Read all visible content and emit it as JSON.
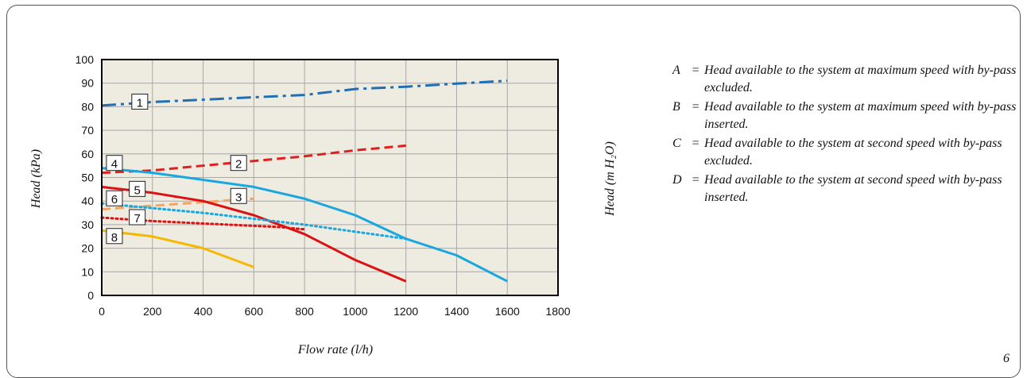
{
  "page_number": "6",
  "legend_notes": [
    {
      "key": "A",
      "eq": "=",
      "text": "Head available to the system at maximum speed with by-pass excluded."
    },
    {
      "key": "B",
      "eq": "=",
      "text": "Head available to the system at maximum speed with by-pass inserted."
    },
    {
      "key": "C",
      "eq": "=",
      "text": "Head available to the system at second speed with by-pass excluded."
    },
    {
      "key": "D",
      "eq": "=",
      "text": "Head available to the system at second speed with by-pass inserted."
    }
  ],
  "chart_data": {
    "type": "line",
    "title": "",
    "xlabel": "Flow rate (l/h)",
    "ylabel": "Head (kPa)",
    "y2label": "Head (m H₂O)",
    "xlim": [
      0,
      1800
    ],
    "ylim": [
      0,
      100
    ],
    "xticks": [
      0,
      200,
      400,
      600,
      800,
      1000,
      1200,
      1400,
      1600,
      1800
    ],
    "yticks": [
      0,
      10,
      20,
      30,
      40,
      50,
      60,
      70,
      80,
      90,
      100
    ],
    "grid": true,
    "plot_background": "#eeebe0",
    "series": [
      {
        "label": "1",
        "color": "#1f6fb5",
        "dash": "dashdot",
        "label_at": [
          150,
          82
        ],
        "x": [
          0,
          200,
          400,
          600,
          800,
          1000,
          1200,
          1400,
          1600
        ],
        "y": [
          80.5,
          82,
          83,
          84,
          85,
          87.5,
          88.5,
          89.8,
          91
        ]
      },
      {
        "label": "2",
        "color": "#e02020",
        "dash": "dashed",
        "label_at": [
          540,
          56
        ],
        "x": [
          0,
          200,
          400,
          600,
          800,
          1000,
          1200
        ],
        "y": [
          52,
          53,
          55,
          57,
          59,
          61.5,
          63.5
        ]
      },
      {
        "label": "3",
        "color": "#f4a460",
        "dash": "dashed",
        "label_at": [
          540,
          42
        ],
        "x": [
          0,
          100,
          200,
          300,
          400,
          500,
          600
        ],
        "y": [
          36.5,
          37.3,
          38,
          38.8,
          39.5,
          40.3,
          41
        ]
      },
      {
        "label": "4",
        "color": "#1aa7e0",
        "dash": "solid",
        "label_at": [
          50,
          56
        ],
        "x": [
          0,
          200,
          400,
          600,
          800,
          1000,
          1200,
          1400,
          1600
        ],
        "y": [
          54,
          52,
          49,
          46,
          41,
          34,
          24,
          17,
          6
        ]
      },
      {
        "label": "5",
        "color": "#dd1111",
        "dash": "solid",
        "label_at": [
          140,
          45
        ],
        "x": [
          0,
          200,
          400,
          600,
          800,
          1000,
          1200
        ],
        "y": [
          46,
          43.5,
          40,
          34,
          26,
          15,
          6
        ]
      },
      {
        "label": "6",
        "color": "#1aa7e0",
        "dash": "dotted",
        "label_at": [
          50,
          41
        ],
        "x": [
          0,
          200,
          400,
          600,
          800,
          1000,
          1200
        ],
        "y": [
          39,
          37,
          35,
          32.5,
          30,
          27,
          24
        ]
      },
      {
        "label": "7",
        "color": "#dd1111",
        "dash": "dotted",
        "label_at": [
          140,
          33
        ],
        "x": [
          0,
          200,
          400,
          600,
          700,
          800
        ],
        "y": [
          33,
          31.5,
          30.5,
          29.5,
          29,
          28
        ]
      },
      {
        "label": "8",
        "color": "#f5b800",
        "dash": "solid",
        "label_at": [
          50,
          25
        ],
        "x": [
          0,
          200,
          400,
          600
        ],
        "y": [
          27.5,
          25,
          20,
          12
        ]
      }
    ]
  }
}
